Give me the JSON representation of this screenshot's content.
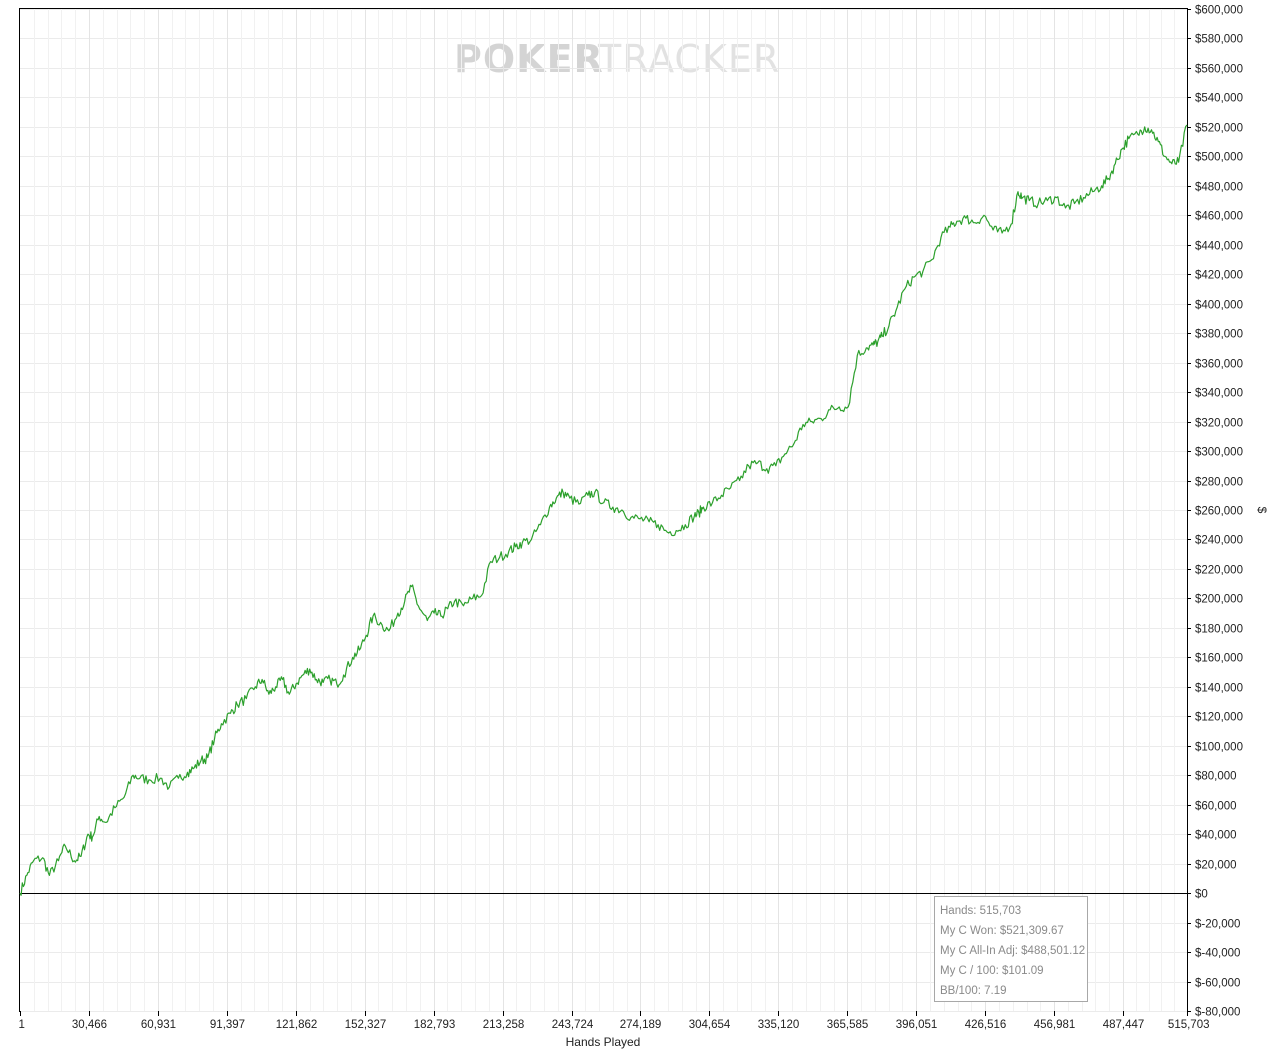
{
  "watermark": {
    "brand_bold": "POKER",
    "brand_light": "TRACKER"
  },
  "stats": [
    "Hands: 515,703",
    "My C Won: $521,309.67",
    "My C All-In Adj: $488,501.12",
    "My C / 100: $101.09",
    "BB/100: 7.19"
  ],
  "chart_data": {
    "type": "line",
    "xlabel": "Hands Played",
    "ylabel": "$",
    "xlim": [
      1,
      515703
    ],
    "ylim": [
      -80000,
      600000
    ],
    "grid": true,
    "x_ticks": [
      "1",
      "30,466",
      "60,931",
      "91,397",
      "121,862",
      "152,327",
      "182,793",
      "213,258",
      "243,724",
      "274,189",
      "304,654",
      "335,120",
      "365,585",
      "396,051",
      "426,516",
      "456,981",
      "487,447",
      "515,703"
    ],
    "x_tick_values": [
      1,
      30466,
      60931,
      91397,
      121862,
      152327,
      182793,
      213258,
      243724,
      274189,
      304654,
      335120,
      365585,
      396051,
      426516,
      456981,
      487447,
      515703
    ],
    "y_ticks": [
      "$600,000",
      "$580,000",
      "$560,000",
      "$540,000",
      "$520,000",
      "$500,000",
      "$480,000",
      "$460,000",
      "$440,000",
      "$420,000",
      "$400,000",
      "$380,000",
      "$360,000",
      "$340,000",
      "$320,000",
      "$300,000",
      "$280,000",
      "$260,000",
      "$240,000",
      "$220,000",
      "$200,000",
      "$180,000",
      "$160,000",
      "$140,000",
      "$120,000",
      "$100,000",
      "$80,000",
      "$60,000",
      "$40,000",
      "$20,000",
      "$0",
      "$-20,000",
      "$-40,000",
      "$-60,000",
      "$-80,000"
    ],
    "y_tick_values": [
      600000,
      580000,
      560000,
      540000,
      520000,
      500000,
      480000,
      460000,
      440000,
      420000,
      400000,
      380000,
      360000,
      340000,
      320000,
      300000,
      280000,
      260000,
      240000,
      220000,
      200000,
      180000,
      160000,
      140000,
      120000,
      100000,
      80000,
      60000,
      40000,
      20000,
      0,
      -20000,
      -40000,
      -60000,
      -80000
    ],
    "series": [
      {
        "color": "#2ca02c",
        "x": [
          1,
          3000,
          6000,
          10000,
          13000,
          17000,
          20000,
          24000,
          27000,
          30000,
          32000,
          35000,
          38000,
          42000,
          46000,
          50000,
          53000,
          57000,
          62000,
          66000,
          70000,
          74000,
          77000,
          80000,
          83000,
          86000,
          89000,
          93000,
          96000,
          100000,
          104000,
          107000,
          110000,
          113000,
          116000,
          119000,
          122000,
          125000,
          128000,
          131000,
          134000,
          137000,
          140000,
          143000,
          147000,
          150000,
          153000,
          156000,
          160000,
          163000,
          167000,
          170000,
          173000,
          176000,
          180000,
          183000,
          186000,
          189000,
          192000,
          196000,
          200000,
          204000,
          208000,
          212000,
          216000,
          219000,
          222000,
          226000,
          230000,
          234000,
          237000,
          240000,
          243000,
          247000,
          251000,
          254000,
          258000,
          262000,
          266000,
          270000,
          274000,
          278000,
          282000,
          286000,
          290000,
          294000,
          298000,
          300000,
          302000,
          306000,
          310000,
          314000,
          318000,
          322000,
          326000,
          330000,
          334000,
          338000,
          342000,
          346000,
          350000,
          354000,
          358000,
          362000,
          366000,
          370000,
          374000,
          377000,
          379000,
          381000,
          384000,
          387000,
          391000,
          395000,
          399000,
          403000,
          407000,
          411000,
          414000,
          418000,
          422000,
          426000,
          430000,
          434000,
          438000,
          441000,
          443000,
          446000,
          450000,
          454000,
          458000,
          462000,
          466000,
          470000,
          474000,
          478000,
          481000,
          484000,
          487000,
          490000,
          494000,
          497000,
          500000,
          503000,
          506000,
          509000,
          512000,
          515703
        ],
        "values": [
          0,
          12000,
          22000,
          24000,
          12000,
          22000,
          32000,
          22000,
          25000,
          40000,
          38000,
          52000,
          48000,
          58000,
          65000,
          80000,
          78000,
          77000,
          78000,
          72000,
          78000,
          82000,
          85000,
          90000,
          92000,
          105000,
          115000,
          122000,
          128000,
          132000,
          140000,
          145000,
          135000,
          140000,
          145000,
          135000,
          142000,
          148000,
          152000,
          145000,
          143000,
          145000,
          142000,
          148000,
          160000,
          165000,
          175000,
          188000,
          182000,
          178000,
          190000,
          198000,
          208000,
          195000,
          185000,
          190000,
          188000,
          193000,
          198000,
          195000,
          200000,
          202000,
          225000,
          228000,
          232000,
          235000,
          238000,
          240000,
          250000,
          262000,
          268000,
          272000,
          268000,
          264000,
          270000,
          272000,
          265000,
          262000,
          260000,
          255000,
          254000,
          252000,
          250000,
          245000,
          246000,
          250000,
          256000,
          258000,
          262000,
          265000,
          270000,
          275000,
          280000,
          290000,
          292000,
          288000,
          290000,
          298000,
          305000,
          318000,
          320000,
          322000,
          328000,
          330000,
          330000,
          365000,
          370000,
          372000,
          374000,
          378000,
          385000,
          395000,
          410000,
          418000,
          422000,
          430000,
          445000,
          452000,
          456000,
          458000,
          455000,
          460000,
          450000,
          448000,
          454000,
          476000,
          472000,
          470000,
          468000,
          470000,
          472000,
          465000,
          468000,
          472000,
          476000,
          480000,
          485000,
          495000,
          505000,
          512000,
          515000,
          520000,
          518000,
          510000,
          500000,
          495000,
          496000,
          521309
        ]
      }
    ]
  }
}
